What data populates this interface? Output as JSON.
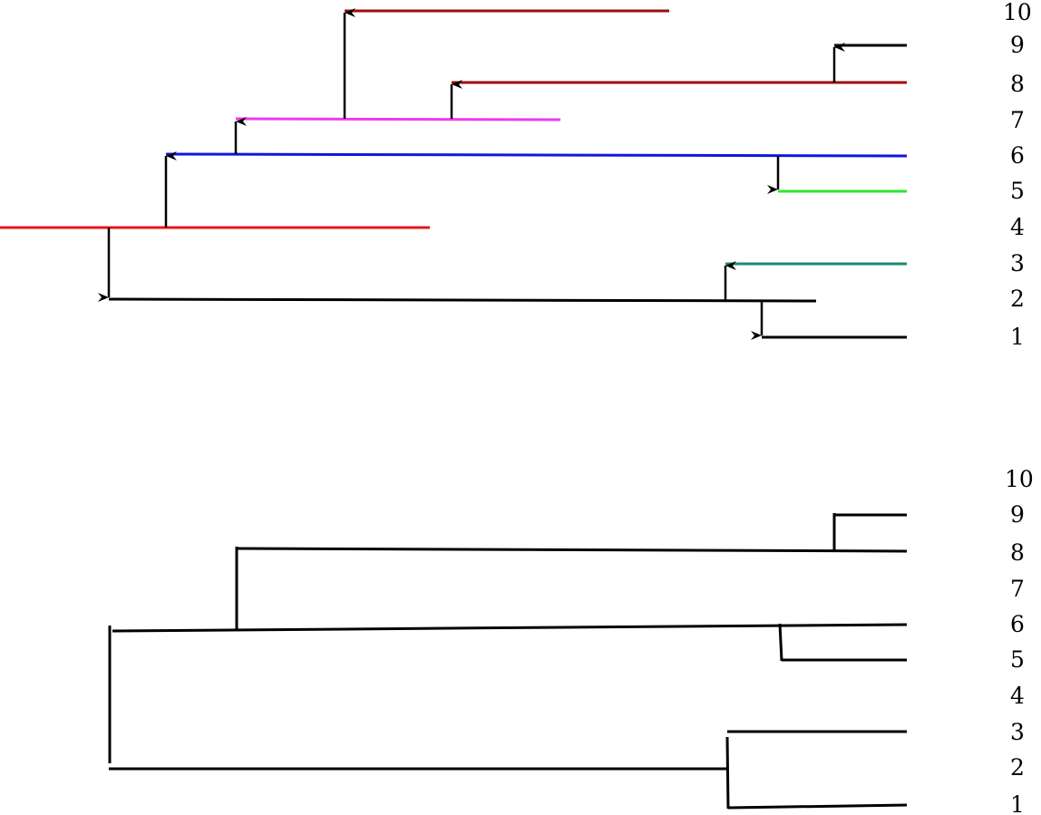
{
  "colors": {
    "black": "#000000",
    "red": "#e8141e",
    "blue": "#1414e0",
    "magenta": "#ee3aee",
    "darkred": "#9c0c0c",
    "green": "#2ee62e",
    "teal": "#1a8a72"
  },
  "top_diagram": {
    "labels": [
      "10",
      "9",
      "8",
      "7",
      "6",
      "5",
      "4",
      "3",
      "2",
      "1"
    ]
  },
  "bottom_diagram": {
    "labels": [
      "10",
      "9",
      "8",
      "7",
      "6",
      "5",
      "4",
      "3",
      "2",
      "1"
    ]
  }
}
